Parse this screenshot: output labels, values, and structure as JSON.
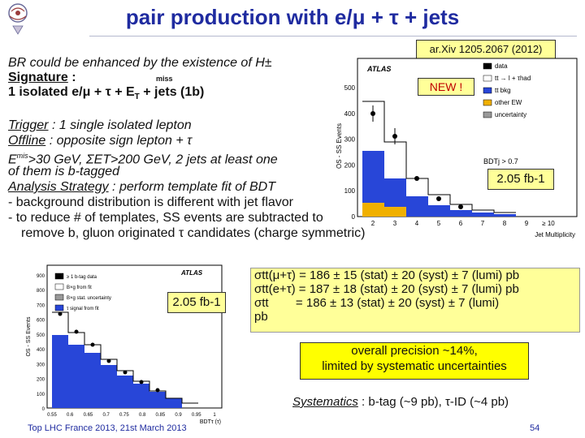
{
  "title": "pair production with e/μ + τ + jets",
  "reference": "ar.Xiv 1205.2067 (2012)",
  "intro": {
    "line1": "BR could be enhanced by the existence of H±",
    "signature_label": "Signature",
    "signature_colon": " :",
    "miss_label": "miss",
    "line3_a": "1 isolated e/μ + τ + E",
    "line3_sub": "T",
    "line3_b": " + jets (1b)"
  },
  "selection": {
    "trigger_label": "Trigger",
    "trigger_text": " : 1 single isolated lepton",
    "offline_label": "Offline",
    "offline_text": " : opposite sign lepton + τ",
    "met_line": ">30 GeV, ΣET>200 GeV, 2 jets at least one",
    "met_prefix": "E",
    "met_sup": "mis",
    "met_sub": "T",
    "btag_line": "of them is b-tagged",
    "strategy_label": "Analysis Strategy",
    "strategy_text": " : perform template fit of BDT",
    "bullet1": " - background distribution is different with jet flavor",
    "bullet2": " - to reduce # of templates, SS events are subtracted to",
    "bullet3": "remove b, gluon originated τ candidates (charge symmetric)"
  },
  "plot_a": {
    "atlas": "ATLAS",
    "new_badge": "NEW !",
    "lumi": "2.05 fb-1",
    "bdt_cut": "BDTj > 0.7",
    "ylabel": "OS - SS Events",
    "xlabel": "Jet Multiplicity",
    "yticks": [
      "0",
      "100",
      "200",
      "300",
      "400",
      "500"
    ],
    "xticks": [
      "2",
      "3",
      "4",
      "5",
      "6",
      "7",
      "8",
      "9",
      "≥ 10"
    ],
    "legend": [
      {
        "label": "data",
        "color": "#000000"
      },
      {
        "label": "tt → l + τhad",
        "color": "#ffffff"
      },
      {
        "label": "tt bkg",
        "color": "#2846d8"
      },
      {
        "label": "other EW",
        "color": "#f0b000"
      },
      {
        "label": "uncertainty",
        "color": "#999999"
      }
    ]
  },
  "plot_b": {
    "atlas": "ATLAS",
    "lumi": "2.05 fb-1",
    "ylabel": "OS - SS Events",
    "xlabel": "BDTτ (τ)",
    "yticks": [
      "0",
      "100",
      "200",
      "300",
      "400",
      "500",
      "600",
      "700",
      "800",
      "900"
    ],
    "xticks": [
      "0.55",
      "0.6",
      "0.65",
      "0.7",
      "0.75",
      "0.8",
      "0.85",
      "0.9",
      "0.95",
      "1"
    ],
    "legend": [
      {
        "label": "≥ 1 b-tag data",
        "color": "#000000"
      },
      {
        "label": "B×g from fit",
        "color": "#ffffff"
      },
      {
        "label": "B×g stat. uncertainty",
        "color": "#999999"
      },
      {
        "label": "τ signal from fit",
        "color": "#2846d8"
      }
    ]
  },
  "cross_sections": {
    "row1_label": "σtt(μ+τ)",
    "row1_value": " = 186 ± 15 (stat) ± 20 (syst) ± 7 (lumi) pb",
    "row2_label": "σtt(e+τ)",
    "row2_value": " = 187 ± 18 (stat) ± 20 (syst) ± 7 (lumi) pb",
    "row3_label": "σtt",
    "row3_value": "        = 186 ± 13 (stat) ± 20 (syst) ± 7 (lumi)",
    "row4": "pb"
  },
  "precision": {
    "line1": "overall precision ~14%,",
    "line2": "limited by systematic uncertainties"
  },
  "systematics": {
    "label": "Systematics",
    "text": " : b-tag (~9 pb), τ-ID (~4 pb)"
  },
  "footer": {
    "conference": "Top LHC France 2013, 21st March 2013",
    "page": "54"
  }
}
